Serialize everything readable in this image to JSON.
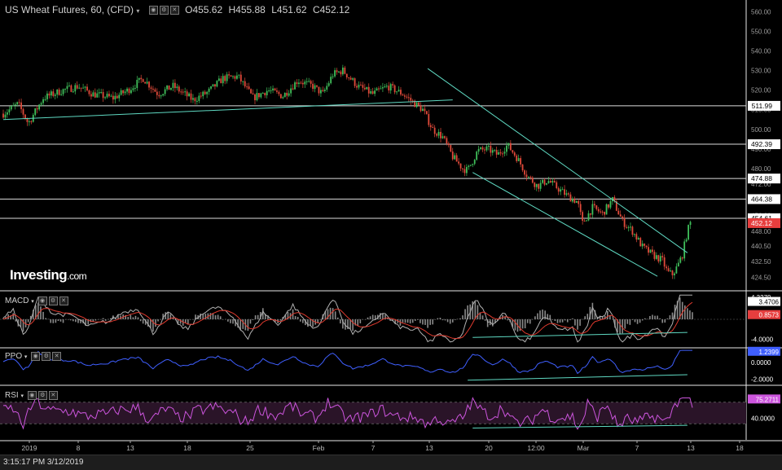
{
  "header": {
    "title": "US Wheat Futures, 60, (CFD)",
    "dropdown_icon": "chevron-down-icon",
    "ohlc": [
      {
        "label": "O",
        "value": "455.62"
      },
      {
        "label": "H",
        "value": "455.88"
      },
      {
        "label": "L",
        "value": "451.62"
      },
      {
        "label": "C",
        "value": "452.12"
      }
    ]
  },
  "logo": {
    "main": "Investing",
    "suffix": ".com"
  },
  "status_time": "3:15:17 PM 3/12/2019",
  "colors": {
    "up": "#3fbf5a",
    "down": "#e04a3a",
    "trendline": "#5fd9c2",
    "macd": "#b0b0b0",
    "signal": "#e03a2e",
    "ppo": "#3f5fff",
    "rsi": "#cc55dd",
    "rsi_band": "#2a1428",
    "price_tag": "#ffffff",
    "last_tag": "#e63e3e",
    "macd_tag": "#e63e3e",
    "axis_text": "#b8b8b8"
  },
  "chart_data": [
    {
      "type": "candlestick",
      "title": "US Wheat Futures, 60, (CFD)",
      "x_tick_labels": [
        "2019",
        "8",
        "13",
        "18",
        "25",
        "Feb",
        "7",
        "13",
        "20",
        "12:00",
        "Mar",
        "7",
        "13",
        "18"
      ],
      "y_tick_labels": [
        "560.00",
        "550.00",
        "540.00",
        "530.00",
        "520.00",
        "510.00",
        "500.00",
        "490.00",
        "480.00",
        "472.00",
        "456.00",
        "448.00",
        "440.50",
        "432.50",
        "424.50"
      ],
      "ylim": [
        418,
        566
      ],
      "horizontal_levels": [
        511.99,
        492.39,
        474.88,
        464.38,
        454.61
      ],
      "last_price": 452.12,
      "close_path": [
        [
          0,
          508
        ],
        [
          3,
          513
        ],
        [
          5,
          503
        ],
        [
          8,
          516
        ],
        [
          12,
          520
        ],
        [
          15,
          522
        ],
        [
          18,
          518
        ],
        [
          22,
          516
        ],
        [
          25,
          520
        ],
        [
          28,
          526
        ],
        [
          31,
          518
        ],
        [
          34,
          522
        ],
        [
          38,
          515
        ],
        [
          41,
          519
        ],
        [
          44,
          526
        ],
        [
          47,
          527
        ],
        [
          50,
          516
        ],
        [
          53,
          520
        ],
        [
          56,
          517
        ],
        [
          59,
          525
        ],
        [
          62,
          522
        ],
        [
          64,
          518
        ],
        [
          66,
          528
        ],
        [
          68,
          530
        ],
        [
          71,
          522
        ],
        [
          74,
          518
        ],
        [
          77,
          522
        ],
        [
          80,
          518
        ],
        [
          82,
          514
        ],
        [
          84,
          510
        ],
        [
          86,
          500
        ],
        [
          88,
          496
        ],
        [
          90,
          486
        ],
        [
          92,
          480
        ],
        [
          93,
          479
        ],
        [
          95,
          489
        ],
        [
          97,
          490
        ],
        [
          99,
          487
        ],
        [
          101,
          492
        ],
        [
          103,
          485
        ],
        [
          105,
          476
        ],
        [
          107,
          471
        ],
        [
          109,
          474
        ],
        [
          111,
          470
        ],
        [
          113,
          466
        ],
        [
          115,
          463
        ],
        [
          116,
          452
        ],
        [
          118,
          460
        ],
        [
          120,
          457
        ],
        [
          122,
          464
        ],
        [
          124,
          453
        ],
        [
          126,
          448
        ],
        [
          128,
          440
        ],
        [
          130,
          436
        ],
        [
          132,
          433
        ],
        [
          133,
          427
        ],
        [
          134,
          426
        ],
        [
          135,
          430
        ],
        [
          136,
          436
        ],
        [
          137,
          448
        ],
        [
          138,
          455
        ]
      ],
      "trendlines": [
        {
          "from": [
            0,
            505
          ],
          "to": [
            90,
            515
          ]
        },
        {
          "from": [
            85,
            531
          ],
          "to": [
            137,
            437
          ]
        },
        {
          "from": [
            94,
            478
          ],
          "to": [
            131,
            425
          ]
        }
      ]
    },
    {
      "type": "line",
      "name": "MACD",
      "y_tick_labels": [
        "4.3279",
        "-4.0000"
      ],
      "last_values": [
        "3.4706",
        "0.8573"
      ],
      "ylim": [
        -5.5,
        5.5
      ]
    },
    {
      "type": "line",
      "name": "PPO",
      "y_tick_labels": [
        "0.0000",
        "-2.0000"
      ],
      "last_value": "1.2399",
      "ylim": [
        -2.6,
        1.6
      ]
    },
    {
      "type": "line",
      "name": "RSI",
      "y_tick_labels": [
        "40.0000"
      ],
      "last_value": "75.2711",
      "bands": [
        70,
        30
      ],
      "ylim": [
        0,
        100
      ]
    }
  ]
}
